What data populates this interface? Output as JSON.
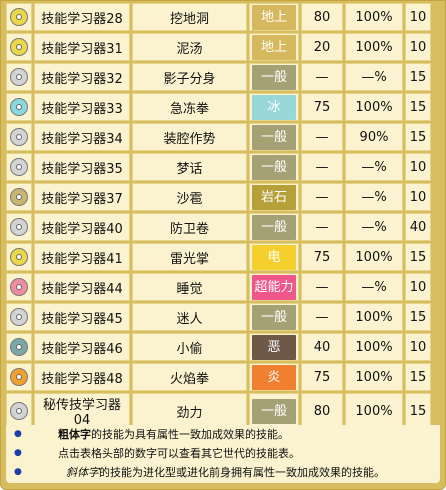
{
  "rows": [
    {
      "disc": "#e8d84a",
      "item": "技能学习器28",
      "move": "挖地洞",
      "type": "地上",
      "type_color": "#d6b95e",
      "power": "80",
      "acc": "100%",
      "pp": "10"
    },
    {
      "disc": "#e8d84a",
      "item": "技能学习器31",
      "move": "泥汤",
      "type": "地上",
      "type_color": "#d6b95e",
      "power": "20",
      "acc": "100%",
      "pp": "10"
    },
    {
      "disc": "#d4d4d4",
      "item": "技能学习器32",
      "move": "影子分身",
      "type": "一般",
      "type_color": "#a4a274",
      "power": "—",
      "acc": "—%",
      "pp": "15"
    },
    {
      "disc": "#8ad8e0",
      "item": "技能学习器33",
      "move": "急冻拳",
      "type": "冰",
      "type_color": "#98d8d8",
      "power": "75",
      "acc": "100%",
      "pp": "15"
    },
    {
      "disc": "#d4d4d4",
      "item": "技能学习器34",
      "move": "装腔作势",
      "type": "一般",
      "type_color": "#a4a274",
      "power": "—",
      "acc": "90%",
      "pp": "15"
    },
    {
      "disc": "#d4d4d4",
      "item": "技能学习器35",
      "move": "梦话",
      "type": "一般",
      "type_color": "#a4a274",
      "power": "—",
      "acc": "—%",
      "pp": "10"
    },
    {
      "disc": "#c9b670",
      "item": "技能学习器37",
      "move": "沙雹",
      "type": "岩石",
      "type_color": "#b6a03a",
      "power": "—",
      "acc": "—%",
      "pp": "10"
    },
    {
      "disc": "#d4d4d4",
      "item": "技能学习器40",
      "move": "防卫卷",
      "type": "一般",
      "type_color": "#a4a274",
      "power": "—",
      "acc": "—%",
      "pp": "40"
    },
    {
      "disc": "#e8d84a",
      "item": "技能学习器41",
      "move": "雷光掌",
      "type": "电",
      "type_color": "#f5cf2e",
      "power": "75",
      "acc": "100%",
      "pp": "15"
    },
    {
      "disc": "#f08ca0",
      "item": "技能学习器44",
      "move": "睡觉",
      "type": "超能力",
      "type_color": "#ef5689",
      "power": "—",
      "acc": "—%",
      "pp": "10"
    },
    {
      "disc": "#d4d4d4",
      "item": "技能学习器45",
      "move": "迷人",
      "type": "一般",
      "type_color": "#a4a274",
      "power": "—",
      "acc": "100%",
      "pp": "15"
    },
    {
      "disc": "#7aa8a8",
      "item": "技能学习器46",
      "move": "小偷",
      "type": "恶",
      "type_color": "#6e5848",
      "power": "40",
      "acc": "100%",
      "pp": "10"
    },
    {
      "disc": "#f0a030",
      "item": "技能学习器48",
      "move": "火焰拳",
      "type": "炎",
      "type_color": "#f08030",
      "power": "75",
      "acc": "100%",
      "pp": "15"
    },
    {
      "disc": "#d4d4d4",
      "item": "秘传技学习器04",
      "move": "劲力",
      "type": "一般",
      "type_color": "#a4a274",
      "power": "80",
      "acc": "100%",
      "pp": "15"
    }
  ],
  "notes": {
    "line1_bold": "粗体字",
    "line1_rest": "的技能为具有属性一致加成效果的技能。",
    "line2": "点击表格头部的数字可以查看其它世代的技能表。",
    "line3_italic": "斜体字",
    "line3_rest": "的技能为进化型或进化前身拥有属性一致加成效果的技能。"
  }
}
